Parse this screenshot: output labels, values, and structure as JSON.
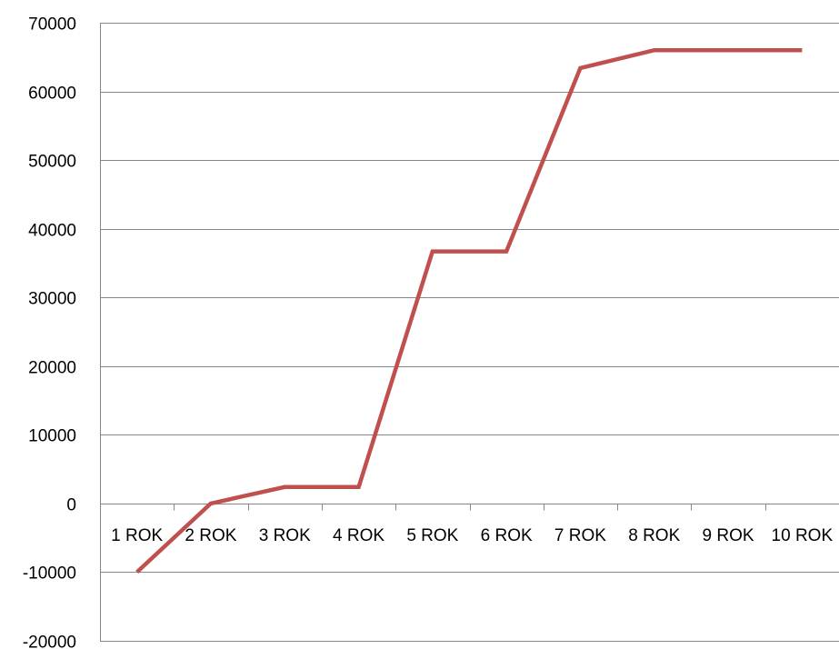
{
  "chart_data": {
    "type": "line",
    "categories": [
      "1 ROK",
      "2 ROK",
      "3 ROK",
      "4 ROK",
      "5 ROK",
      "6 ROK",
      "7 ROK",
      "8 ROK",
      "9 ROK",
      "10 ROK"
    ],
    "series": [
      {
        "values": [
          -10000,
          0,
          2400,
          2400,
          36700,
          36700,
          63400,
          66000,
          66000,
          66000
        ],
        "color": "#c0504d"
      }
    ],
    "yticks": [
      "70000",
      "60000",
      "50000",
      "40000",
      "30000",
      "20000",
      "10000",
      "0",
      "-10000",
      "-20000"
    ],
    "ylim": [
      -20000,
      70000
    ],
    "title": "",
    "xlabel": "",
    "ylabel": "",
    "grid": true,
    "gridline_color": "#868686"
  }
}
